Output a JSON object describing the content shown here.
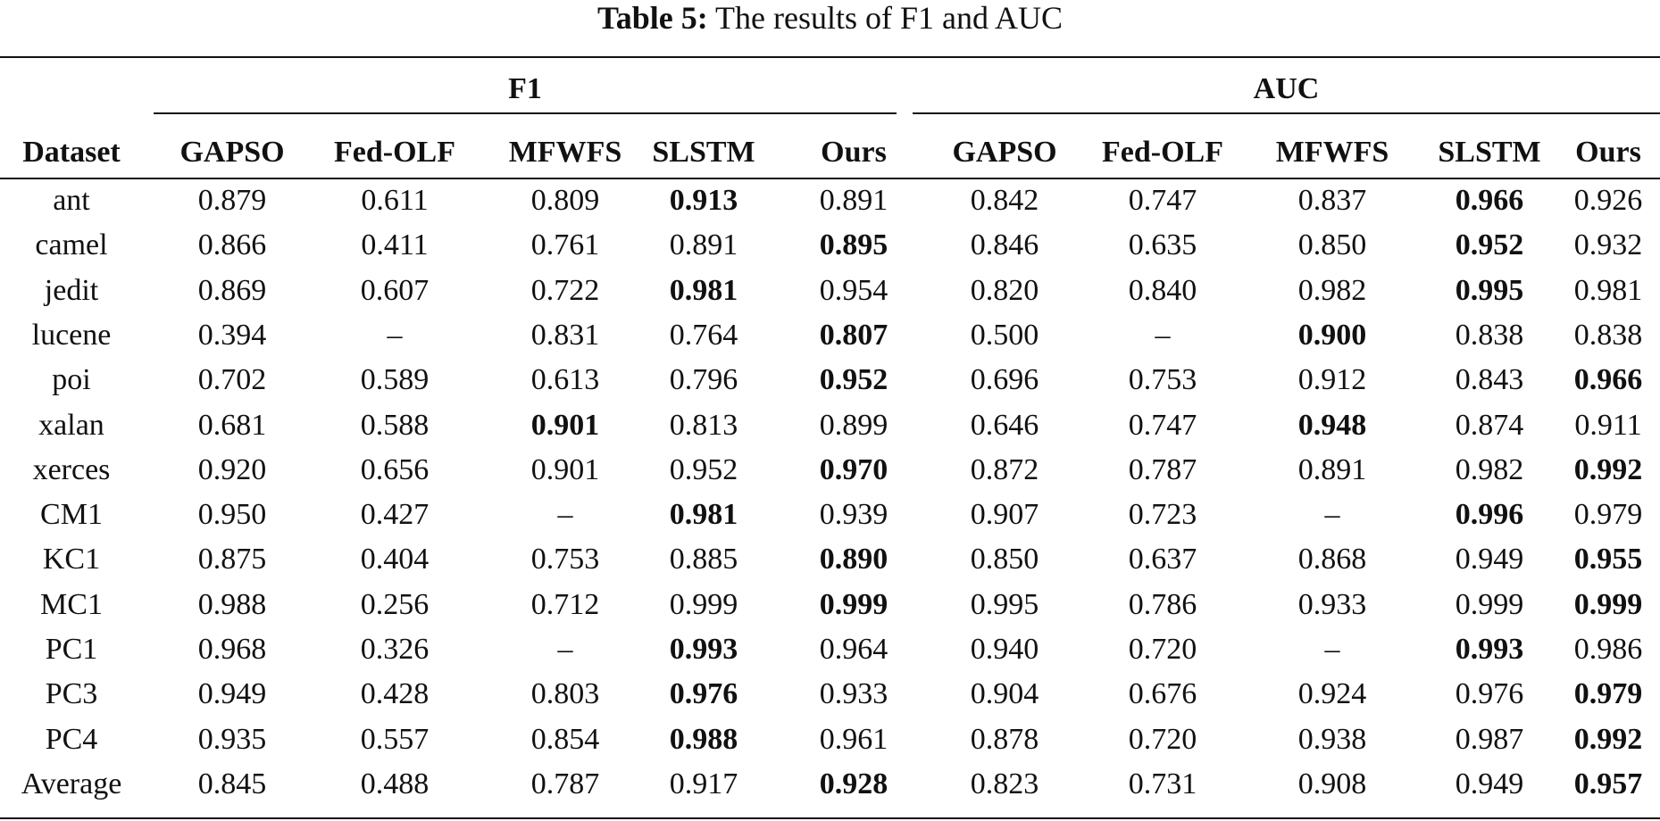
{
  "caption": {
    "label": "Table 5:",
    "text": "The results of F1 and AUC"
  },
  "groups": {
    "f1": "F1",
    "auc": "AUC"
  },
  "columns": [
    "Dataset",
    "GAPSO",
    "Fed-OLF",
    "MFWFS",
    "SLSTM",
    "Ours",
    "GAPSO",
    "Fed-OLF",
    "MFWFS",
    "SLSTM",
    "Ours"
  ],
  "rows": [
    {
      "dataset": "ant",
      "values": [
        "0.879",
        "0.611",
        "0.809",
        "0.913",
        "0.891",
        "0.842",
        "0.747",
        "0.837",
        "0.966",
        "0.926"
      ],
      "bold": [
        3,
        8
      ]
    },
    {
      "dataset": "camel",
      "values": [
        "0.866",
        "0.411",
        "0.761",
        "0.891",
        "0.895",
        "0.846",
        "0.635",
        "0.850",
        "0.952",
        "0.932"
      ],
      "bold": [
        4,
        8
      ]
    },
    {
      "dataset": "jedit",
      "values": [
        "0.869",
        "0.607",
        "0.722",
        "0.981",
        "0.954",
        "0.820",
        "0.840",
        "0.982",
        "0.995",
        "0.981"
      ],
      "bold": [
        3,
        8
      ]
    },
    {
      "dataset": "lucene",
      "values": [
        "0.394",
        "–",
        "0.831",
        "0.764",
        "0.807",
        "0.500",
        "–",
        "0.900",
        "0.838",
        "0.838"
      ],
      "bold": [
        4,
        7
      ]
    },
    {
      "dataset": "poi",
      "values": [
        "0.702",
        "0.589",
        "0.613",
        "0.796",
        "0.952",
        "0.696",
        "0.753",
        "0.912",
        "0.843",
        "0.966"
      ],
      "bold": [
        4,
        9
      ]
    },
    {
      "dataset": "xalan",
      "values": [
        "0.681",
        "0.588",
        "0.901",
        "0.813",
        "0.899",
        "0.646",
        "0.747",
        "0.948",
        "0.874",
        "0.911"
      ],
      "bold": [
        2,
        7
      ]
    },
    {
      "dataset": "xerces",
      "values": [
        "0.920",
        "0.656",
        "0.901",
        "0.952",
        "0.970",
        "0.872",
        "0.787",
        "0.891",
        "0.982",
        "0.992"
      ],
      "bold": [
        4,
        9
      ]
    },
    {
      "dataset": "CM1",
      "values": [
        "0.950",
        "0.427",
        "–",
        "0.981",
        "0.939",
        "0.907",
        "0.723",
        "–",
        "0.996",
        "0.979"
      ],
      "bold": [
        3,
        8
      ]
    },
    {
      "dataset": "KC1",
      "values": [
        "0.875",
        "0.404",
        "0.753",
        "0.885",
        "0.890",
        "0.850",
        "0.637",
        "0.868",
        "0.949",
        "0.955"
      ],
      "bold": [
        4,
        9
      ]
    },
    {
      "dataset": "MC1",
      "values": [
        "0.988",
        "0.256",
        "0.712",
        "0.999",
        "0.999",
        "0.995",
        "0.786",
        "0.933",
        "0.999",
        "0.999"
      ],
      "bold": [
        4,
        9
      ]
    },
    {
      "dataset": "PC1",
      "values": [
        "0.968",
        "0.326",
        "–",
        "0.993",
        "0.964",
        "0.940",
        "0.720",
        "–",
        "0.993",
        "0.986"
      ],
      "bold": [
        3,
        8
      ]
    },
    {
      "dataset": "PC3",
      "values": [
        "0.949",
        "0.428",
        "0.803",
        "0.976",
        "0.933",
        "0.904",
        "0.676",
        "0.924",
        "0.976",
        "0.979"
      ],
      "bold": [
        3,
        9
      ]
    },
    {
      "dataset": "PC4",
      "values": [
        "0.935",
        "0.557",
        "0.854",
        "0.988",
        "0.961",
        "0.878",
        "0.720",
        "0.938",
        "0.987",
        "0.992"
      ],
      "bold": [
        3,
        9
      ]
    },
    {
      "dataset": "Average",
      "values": [
        "0.845",
        "0.488",
        "0.787",
        "0.917",
        "0.928",
        "0.823",
        "0.731",
        "0.908",
        "0.949",
        "0.957"
      ],
      "bold": [
        4,
        9
      ]
    }
  ]
}
